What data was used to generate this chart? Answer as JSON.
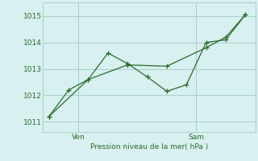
{
  "line_jagged_x": [
    0,
    1,
    2,
    3,
    4,
    5,
    6,
    7,
    8,
    9,
    10
  ],
  "line_jagged_y": [
    1011.2,
    1012.2,
    1012.6,
    1013.6,
    1013.2,
    1012.7,
    1012.15,
    1012.4,
    1014.0,
    1014.1,
    1015.05
  ],
  "line_trend_x": [
    0,
    2,
    4,
    6,
    8,
    9,
    10
  ],
  "line_trend_y": [
    1011.2,
    1012.6,
    1013.15,
    1013.1,
    1013.8,
    1014.2,
    1015.05
  ],
  "color": "#2d6a2d",
  "bg_color": "#d8f0f0",
  "grid_color": "#aacece",
  "xlabel_text": "Pression niveau de la mer( hPa )",
  "xtick_positions": [
    1.5,
    7.5
  ],
  "xtick_labels": [
    "Ven",
    "Sam"
  ],
  "vline_positions": [
    1.5,
    7.5
  ],
  "ylim": [
    1010.6,
    1015.5
  ],
  "yticks": [
    1011,
    1012,
    1013,
    1014,
    1015
  ],
  "xlim": [
    -0.3,
    10.5
  ]
}
